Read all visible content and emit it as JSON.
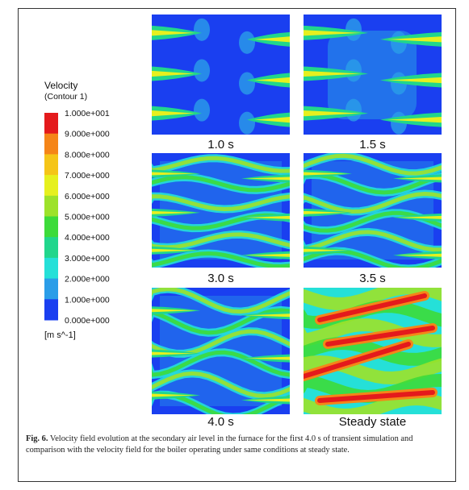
{
  "legend": {
    "title": "Velocity",
    "subtitle": "(Contour 1)",
    "labels": [
      "1.000e+001",
      "9.000e+000",
      "8.000e+000",
      "7.000e+000",
      "6.000e+000",
      "5.000e+000",
      "4.000e+000",
      "3.000e+000",
      "2.000e+000",
      "1.000e+000",
      "0.000e+000"
    ],
    "colors": [
      "#e41a1c",
      "#f58518",
      "#f5c518",
      "#e6f01e",
      "#9de22a",
      "#3ddb3a",
      "#21d68c",
      "#25e0d8",
      "#2a9de8",
      "#1a3ff0"
    ],
    "unit": "[m s^-1]"
  },
  "panels": [
    {
      "label": "1.0 s"
    },
    {
      "label": "1.5 s"
    },
    {
      "label": "3.0 s"
    },
    {
      "label": "3.5 s"
    },
    {
      "label": "4.0 s"
    },
    {
      "label": "Steady state"
    }
  ],
  "caption": {
    "label": "Fig. 6.",
    "text": "Velocity field evolution at the secondary air level in the furnace for the first 4.0 s of transient simulation and comparison with the velocity field for the boiler operating under same conditions at steady state."
  }
}
